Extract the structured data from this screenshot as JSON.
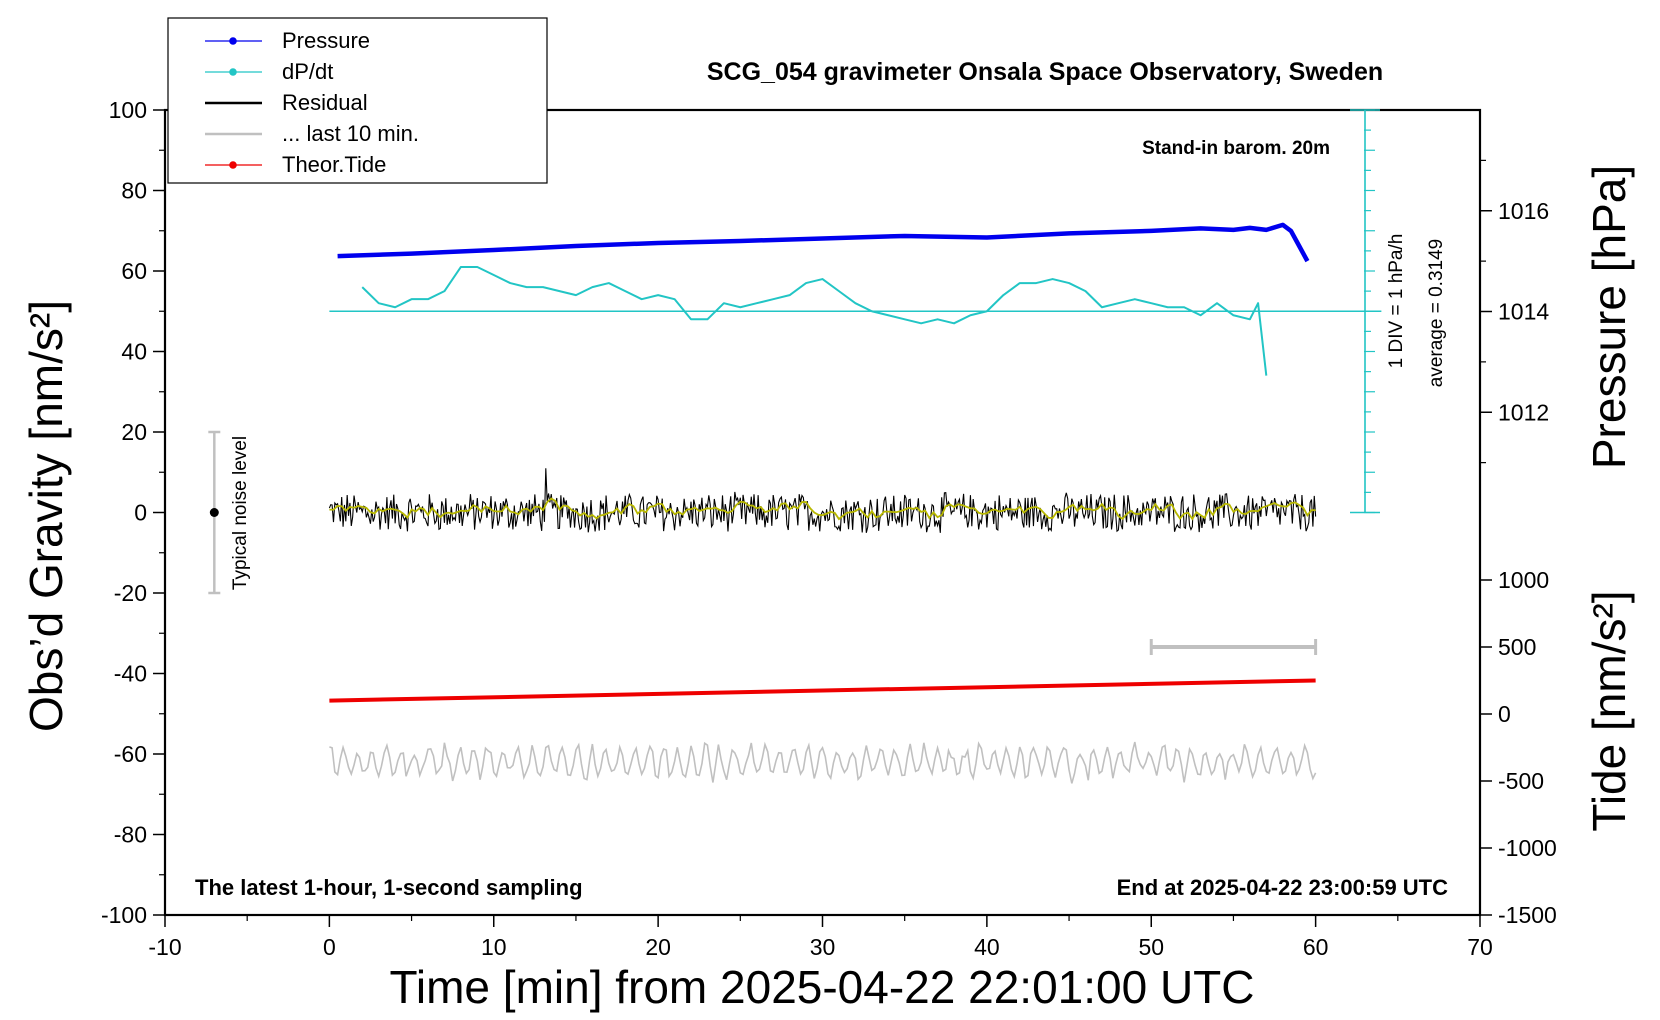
{
  "chart_data": {
    "type": "line",
    "title": "SCG_054 gravimeter Onsala Space Observatory, Sweden",
    "xlabel": "Time [min] from 2025-04-22 22:01:00 UTC",
    "ylabel": "Obs’d Gravity [nm/s²]",
    "ylabel_right_top": "Pressure [hPa]",
    "ylabel_right_bottom": "Tide [nm/s²]",
    "xlim": [
      -10,
      70
    ],
    "ylim": [
      -100,
      100
    ],
    "pressure_lim": [
      1010,
      1018
    ],
    "tide_lim": [
      -1500,
      1000
    ],
    "x_ticks": [
      "-10",
      "0",
      "10",
      "20",
      "30",
      "40",
      "50",
      "60",
      "70"
    ],
    "y_ticks": [
      "100",
      "80",
      "60",
      "40",
      "20",
      "0",
      "-20",
      "-40",
      "-60",
      "-80",
      "-100"
    ],
    "pressure_ticks": [
      "1016",
      "1014",
      "1012"
    ],
    "tide_ticks": [
      "1000",
      "500",
      "0",
      "-500",
      "-1000",
      "-1500"
    ],
    "annotations": {
      "barometer": "Stand-in barom. 20m",
      "div_note": "1 DIV = 1 hPa/h",
      "average_note": "average = 0.3149",
      "noise_label": "Typical noise level",
      "bottom_left": "The latest 1-hour, 1-second sampling",
      "bottom_right": "End at 2025-04-22 23:00:59 UTC"
    },
    "legend": {
      "placement": "top-left",
      "entries": [
        {
          "label": "Pressure",
          "color": "#0000ee",
          "marker": true
        },
        {
          "label": "dP/dt",
          "color": "#22c5c5",
          "marker": true
        },
        {
          "label": "Residual",
          "color": "#000000",
          "marker": false
        },
        {
          "label": "... last 10 min.",
          "color": "#c0c0c0",
          "marker": false
        },
        {
          "label": "Theor.Tide",
          "color": "#ee0000",
          "marker": true
        }
      ]
    },
    "colors": {
      "pressure": "#0000ee",
      "dpdt": "#22c5c5",
      "residual": "#000000",
      "residual_smooth": "#b8b800",
      "last10": "#c0c0c0",
      "tide": "#ee0000",
      "noise_bar": "#c0c0c0"
    },
    "series": [
      {
        "name": "Pressure",
        "axis": "pressure_hPa",
        "x": [
          0.5,
          5,
          10,
          15,
          20,
          25,
          30,
          35,
          40,
          45,
          50,
          53,
          55,
          56,
          57,
          58,
          58.5,
          59,
          59.5
        ],
        "values": [
          1015.1,
          1015.15,
          1015.22,
          1015.3,
          1015.36,
          1015.4,
          1015.45,
          1015.5,
          1015.47,
          1015.55,
          1015.6,
          1015.65,
          1015.62,
          1015.66,
          1015.62,
          1015.72,
          1015.6,
          1015.3,
          1015.0
        ]
      },
      {
        "name": "dP/dt",
        "axis": "gravity_divisions",
        "x": [
          2,
          3,
          4,
          5,
          6,
          7,
          8,
          9,
          10,
          11,
          12,
          13,
          14,
          15,
          16,
          17,
          18,
          19,
          20,
          21,
          22,
          23,
          24,
          25,
          26,
          27,
          28,
          29,
          30,
          31,
          32,
          33,
          34,
          35,
          36,
          37,
          38,
          39,
          40,
          41,
          42,
          43,
          44,
          45,
          46,
          47,
          48,
          49,
          50,
          51,
          52,
          53,
          54,
          55,
          56,
          56.5,
          57
        ],
        "values": [
          56,
          52,
          51,
          53,
          53,
          55,
          61,
          61,
          59,
          57,
          56,
          56,
          55,
          54,
          56,
          57,
          55,
          53,
          54,
          53,
          48,
          48,
          52,
          51,
          52,
          53,
          54,
          57,
          58,
          55,
          52,
          50,
          49,
          48,
          47,
          48,
          47,
          49,
          50,
          54,
          57,
          57,
          58,
          57,
          55,
          51,
          52,
          53,
          52,
          51,
          51,
          49,
          52,
          49,
          48,
          52,
          34
        ]
      },
      {
        "name": "Residual",
        "axis": "gravity_nm_s2",
        "x": [
          0,
          60
        ],
        "values": [
          0,
          0
        ],
        "noise_amplitude": 4.5,
        "spike": {
          "x": 13.2,
          "value": 11
        }
      },
      {
        "name": "... last 10 min.",
        "axis": "gravity_nm_s2",
        "x": [
          0,
          60
        ],
        "values": [
          -62,
          -62
        ],
        "noise_amplitude": 3.5
      },
      {
        "name": "Theor.Tide",
        "axis": "tide_nm_s2",
        "x": [
          0,
          60
        ],
        "values": [
          100,
          250
        ]
      }
    ],
    "reference_lines": [
      {
        "name": "dP/dt zero",
        "axis": "gravity_nm_s2",
        "y": 50,
        "color": "#22c5c5"
      }
    ],
    "noise_level": {
      "x": -7,
      "center": 0,
      "range": [
        -20,
        20
      ]
    },
    "last10_bar": {
      "x_range": [
        50,
        60
      ],
      "tide_value": 500
    }
  }
}
